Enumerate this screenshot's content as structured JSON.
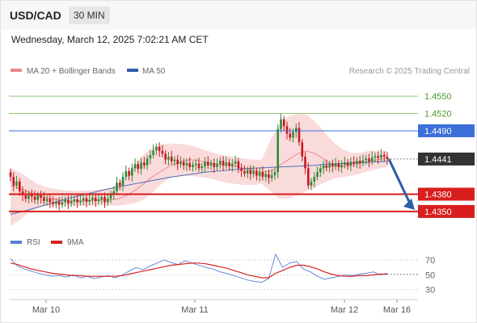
{
  "header": {
    "symbol": "USD/CAD",
    "timeframe": "30 MIN"
  },
  "datetime": "Wednesday, March 12, 2025 7:02:21 AM CET",
  "legend": {
    "bollinger": "MA 20 + Bollinger Bands",
    "ma50": "MA 50",
    "credit": "Research © 2025 Trading Central"
  },
  "rsi_legend": {
    "rsi": "RSI",
    "ma9": "9MA"
  },
  "colors": {
    "candle_up": "#2e8b3a",
    "candle_down": "#c8171e",
    "band": "#f8c7c7",
    "ma20": "#e88a8a",
    "ma50": "#4a6fb5",
    "level_green": "#8cc870",
    "level_blue": "#3d6fd9",
    "level_red": "#d81e1e",
    "arrow": "#2d5fa8",
    "current_price": "#333333",
    "rsi_line": "#5b7fd6",
    "rsi_ma": "#d82020"
  },
  "chart_data": [
    {
      "type": "candlestick",
      "ylim": [
        1.4312,
        1.4581
      ],
      "x_ticks": [
        "Mar 10",
        "Mar 11",
        "Mar 12",
        "Mar 16"
      ],
      "levels": [
        {
          "value": 1.455,
          "label": "1.4550",
          "kind": "resistance"
        },
        {
          "value": 1.452,
          "label": "1.4520",
          "kind": "resistance"
        },
        {
          "value": 1.449,
          "label": "1.4490",
          "kind": "pivot"
        },
        {
          "value": 1.438,
          "label": "1.4380",
          "kind": "support"
        },
        {
          "value": 1.435,
          "label": "1.4350",
          "kind": "support"
        }
      ],
      "current_price": {
        "value": 1.4441,
        "label": "1.4441"
      },
      "forecast": {
        "from": 1.4441,
        "to": 1.435,
        "direction": "down"
      },
      "candles_close": [
        1.441,
        1.4395,
        1.4402,
        1.4385,
        1.4378,
        1.4372,
        1.438,
        1.4376,
        1.437,
        1.4378,
        1.4374,
        1.4368,
        1.4372,
        1.4366,
        1.4363,
        1.4367,
        1.4362,
        1.4366,
        1.437,
        1.4364,
        1.4368,
        1.4371,
        1.4366,
        1.4369,
        1.4373,
        1.4367,
        1.437,
        1.4374,
        1.4368,
        1.4371,
        1.4375,
        1.4366,
        1.4372,
        1.438,
        1.4385,
        1.44,
        1.4395,
        1.441,
        1.442,
        1.4412,
        1.4425,
        1.4432,
        1.4424,
        1.4435,
        1.443,
        1.4442,
        1.4448,
        1.4456,
        1.4462,
        1.4455,
        1.445,
        1.444,
        1.4445,
        1.4437,
        1.444,
        1.4432,
        1.4436,
        1.443,
        1.4434,
        1.4427,
        1.4431,
        1.4433,
        1.4425,
        1.4428,
        1.4436,
        1.443,
        1.4434,
        1.4427,
        1.4432,
        1.4438,
        1.443,
        1.4435,
        1.4429,
        1.4433,
        1.4437,
        1.4425,
        1.442,
        1.4416,
        1.4422,
        1.4415,
        1.442,
        1.4412,
        1.4418,
        1.441,
        1.4415,
        1.4408,
        1.4413,
        1.4418,
        1.4493,
        1.451,
        1.4498,
        1.4485,
        1.4478,
        1.4488,
        1.4495,
        1.447,
        1.4445,
        1.4425,
        1.4395,
        1.4402,
        1.441,
        1.4418,
        1.4425,
        1.443,
        1.4426,
        1.4432,
        1.4428,
        1.4433,
        1.4427,
        1.4431,
        1.4435,
        1.443,
        1.4436,
        1.4433,
        1.4438,
        1.4434,
        1.4439,
        1.4442,
        1.4437,
        1.4444,
        1.4446,
        1.4443,
        1.4448,
        1.4445,
        1.4441
      ],
      "ma20": [
        1.4395,
        1.439,
        1.4384,
        1.4378,
        1.4374,
        1.4371,
        1.4369,
        1.4368,
        1.4368,
        1.4369,
        1.437,
        1.437,
        1.4372,
        1.4378,
        1.4388,
        1.44,
        1.4412,
        1.4422,
        1.4431,
        1.4437,
        1.444,
        1.4438,
        1.4435,
        1.4432,
        1.443,
        1.4428,
        1.4425,
        1.4422,
        1.4418,
        1.442,
        1.443,
        1.444,
        1.445,
        1.4455,
        1.445,
        1.444,
        1.443,
        1.4428,
        1.443,
        1.4434,
        1.4437,
        1.444,
        1.4442
      ],
      "upper_band": [
        1.4425,
        1.4418,
        1.4408,
        1.4398,
        1.4392,
        1.4389,
        1.4387,
        1.4386,
        1.4386,
        1.4387,
        1.4388,
        1.439,
        1.4398,
        1.4415,
        1.4435,
        1.4452,
        1.4462,
        1.4467,
        1.4468,
        1.4467,
        1.4465,
        1.446,
        1.4455,
        1.445,
        1.4447,
        1.4444,
        1.4442,
        1.444,
        1.444,
        1.4475,
        1.45,
        1.4515,
        1.452,
        1.4518,
        1.4505,
        1.4488,
        1.447,
        1.4458,
        1.4452,
        1.4452,
        1.4455,
        1.4456,
        1.4455
      ],
      "lower_band": [
        1.4325,
        1.4335,
        1.4348,
        1.4356,
        1.436,
        1.436,
        1.436,
        1.436,
        1.436,
        1.436,
        1.436,
        1.436,
        1.436,
        1.4362,
        1.4365,
        1.4372,
        1.4385,
        1.44,
        1.441,
        1.4412,
        1.4412,
        1.441,
        1.4408,
        1.4404,
        1.44,
        1.4398,
        1.4396,
        1.4396,
        1.4398,
        1.4385,
        1.4372,
        1.4372,
        1.4378,
        1.4385,
        1.4392,
        1.44,
        1.4407,
        1.441,
        1.4412,
        1.4416,
        1.442,
        1.4424,
        1.4428
      ],
      "ma50": [
        1.4345,
        1.435,
        1.4356,
        1.4362,
        1.4368,
        1.4374,
        1.4379,
        1.4384,
        1.4389,
        1.4393,
        1.4397,
        1.4401,
        1.4405,
        1.4409,
        1.4412,
        1.4415,
        1.4418,
        1.442,
        1.4422,
        1.4424,
        1.4425,
        1.4426,
        1.4427,
        1.4428,
        1.4429,
        1.443,
        1.4432,
        1.4433,
        1.4434,
        1.4435,
        1.4436,
        1.4437
      ]
    },
    {
      "type": "line",
      "title": "RSI",
      "ylim": [
        23,
        80
      ],
      "y_ticks": [
        70,
        50,
        30
      ],
      "series": [
        {
          "name": "RSI",
          "values": [
            72,
            62,
            58,
            55,
            52,
            50,
            48,
            49,
            47,
            50,
            46,
            48,
            45,
            47,
            49,
            46,
            50,
            55,
            60,
            57,
            62,
            66,
            70,
            67,
            64,
            69,
            66,
            63,
            60,
            58,
            54,
            52,
            49,
            46,
            43,
            41,
            40,
            45,
            78,
            60,
            66,
            68,
            58,
            54,
            48,
            44,
            46,
            48,
            50,
            49,
            51,
            52,
            54,
            50,
            52
          ]
        },
        {
          "name": "9MA",
          "values": [
            66,
            64,
            61,
            58,
            56,
            54,
            52,
            51,
            50,
            49,
            49,
            48,
            48,
            48,
            48,
            48,
            49,
            51,
            53,
            55,
            57,
            59,
            61,
            63,
            64,
            65,
            66,
            66,
            65,
            63,
            61,
            59,
            56,
            53,
            50,
            48,
            46,
            46,
            52,
            56,
            60,
            63,
            63,
            61,
            58,
            54,
            51,
            49,
            48,
            48,
            49,
            49,
            50,
            51,
            51
          ]
        }
      ]
    }
  ]
}
